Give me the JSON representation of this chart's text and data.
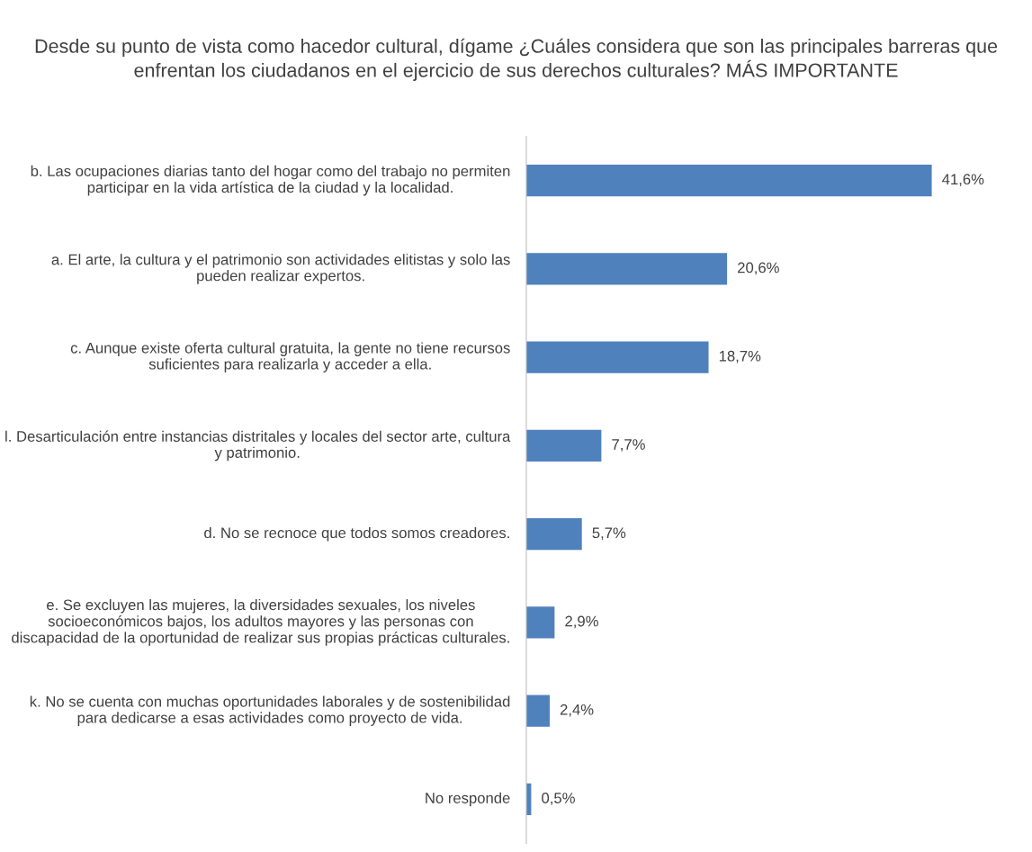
{
  "chart_data": {
    "type": "bar",
    "orientation": "horizontal",
    "title": "Desde su punto de vista como hacedor cultural, dígame ¿Cuáles considera que son las principales barreras que enfrentan los ciudadanos en el ejercicio de sus derechos culturales? MÁS IMPORTANTE",
    "categories": [
      "b. Las ocupaciones diarias tanto del hogar como del trabajo no permiten participar en la vida artística de la ciudad y la localidad.",
      "a. El arte, la cultura y el patrimonio son actividades elitistas y solo las pueden realizar expertos.",
      "c. Aunque existe oferta cultural gratuita, la gente no tiene recursos suficientes para realizarla y acceder a ella.",
      "l. Desarticulación entre instancias distritales y locales del sector arte, cultura y patrimonio.",
      "d. No se recnoce que todos somos creadores.",
      "e. Se excluyen las mujeres, la diversidades sexuales, los niveles socioeconómicos bajos, los adultos mayores y las personas con discapacidad de la oportunidad de realizar sus propias prácticas culturales.",
      "k. No se cuenta con muchas oportunidades laborales y de sostenibilidad para dedicarse a esas actividades como proyecto de vida.",
      "No responde"
    ],
    "values": [
      41.6,
      20.6,
      18.7,
      7.7,
      5.7,
      2.9,
      2.4,
      0.5
    ],
    "value_labels": [
      "41,6%",
      "20,6%",
      "18,7%",
      "7,7%",
      "5,7%",
      "2,9%",
      "2,4%",
      "0,5%"
    ],
    "color": "#4f81bd",
    "grid": false,
    "legend": false
  }
}
